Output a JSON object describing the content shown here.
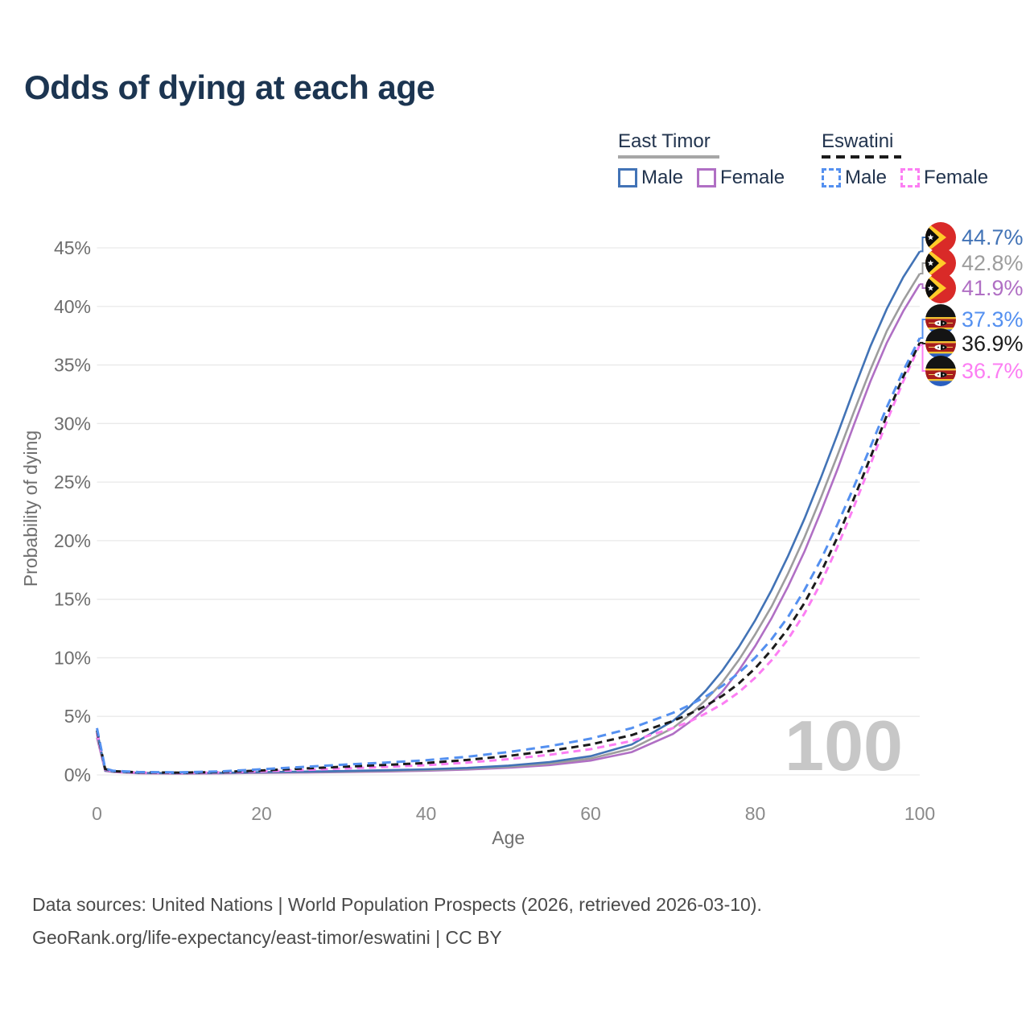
{
  "title": "Odds of dying at each age",
  "legend": {
    "groups": [
      {
        "country": "East Timor",
        "line_color": "#a6a6a6",
        "line_dashed": false,
        "underline_width": 126,
        "items": [
          {
            "label": "Male",
            "color": "#4273b6",
            "dashed": false
          },
          {
            "label": "Female",
            "color": "#b06fc4",
            "dashed": false
          }
        ]
      },
      {
        "country": "Eswatini",
        "line_color": "#1b1b1b",
        "line_dashed": true,
        "underline_width": 99,
        "items": [
          {
            "label": "Male",
            "color": "#5490f0",
            "dashed": true
          },
          {
            "label": "Female",
            "color": "#fc7ef3",
            "dashed": true
          }
        ]
      }
    ]
  },
  "chart_data": {
    "type": "line",
    "title": "Odds of dying at each age",
    "xlabel": "Age",
    "ylabel": "Probability of dying",
    "xlim": [
      0,
      100
    ],
    "ylim_pct": [
      0,
      45
    ],
    "x_ticks": [
      0,
      20,
      40,
      60,
      80,
      100
    ],
    "y_ticks_pct": [
      0,
      5,
      10,
      15,
      20,
      25,
      30,
      35,
      40,
      45
    ],
    "y_tick_suffix": "%",
    "grid": "horizontal-only",
    "watermark": "100",
    "grid_color": "#e9e9e9",
    "ages": [
      0,
      1,
      2,
      5,
      10,
      15,
      20,
      25,
      30,
      35,
      40,
      45,
      50,
      55,
      60,
      65,
      70,
      72,
      74,
      76,
      78,
      80,
      82,
      84,
      86,
      88,
      90,
      92,
      94,
      96,
      98,
      100
    ],
    "series": [
      {
        "name": "East Timor Male",
        "country": "East Timor",
        "sex": "Male",
        "color": "#4273b6",
        "dashed": false,
        "end_label": "44.7%",
        "flag": "east-timor",
        "values": [
          3.8,
          0.4,
          0.3,
          0.18,
          0.15,
          0.18,
          0.24,
          0.28,
          0.33,
          0.4,
          0.48,
          0.6,
          0.8,
          1.1,
          1.6,
          2.6,
          4.6,
          5.8,
          7.2,
          8.9,
          10.9,
          13.2,
          15.8,
          18.7,
          21.9,
          25.4,
          29.1,
          32.9,
          36.6,
          39.8,
          42.5,
          44.7
        ]
      },
      {
        "name": "East Timor Both sexes",
        "country": "East Timor",
        "sex": "Both sexes",
        "color": "#9d9d9d",
        "dashed": false,
        "end_label": "42.8%",
        "flag": "east-timor",
        "values": [
          3.5,
          0.37,
          0.27,
          0.16,
          0.13,
          0.16,
          0.21,
          0.25,
          0.29,
          0.35,
          0.42,
          0.53,
          0.7,
          0.96,
          1.4,
          2.25,
          4.0,
          5.1,
          6.4,
          7.9,
          9.8,
          12.0,
          14.4,
          17.2,
          20.3,
          23.7,
          27.3,
          31.0,
          34.6,
          37.9,
          40.5,
          42.8
        ]
      },
      {
        "name": "East Timor Female",
        "country": "East Timor",
        "sex": "Female",
        "color": "#b06fc4",
        "dashed": false,
        "end_label": "41.9%",
        "flag": "east-timor",
        "values": [
          3.2,
          0.34,
          0.24,
          0.14,
          0.11,
          0.13,
          0.17,
          0.2,
          0.24,
          0.29,
          0.36,
          0.46,
          0.61,
          0.84,
          1.22,
          1.95,
          3.5,
          4.5,
          5.7,
          7.1,
          8.9,
          11.0,
          13.4,
          16.1,
          19.1,
          22.5,
          26.1,
          29.9,
          33.6,
          36.9,
          39.6,
          41.9
        ]
      },
      {
        "name": "Eswatini Male",
        "country": "Eswatini",
        "sex": "Male",
        "color": "#5490f0",
        "dashed": true,
        "end_label": "37.3%",
        "flag": "eswatini",
        "values": [
          4.0,
          0.55,
          0.35,
          0.25,
          0.22,
          0.3,
          0.48,
          0.68,
          0.88,
          1.05,
          1.25,
          1.55,
          1.95,
          2.45,
          3.1,
          4.0,
          5.3,
          5.95,
          6.7,
          7.6,
          8.7,
          10.0,
          11.6,
          13.5,
          15.8,
          18.4,
          21.4,
          24.6,
          28.0,
          31.4,
          34.5,
          37.3
        ]
      },
      {
        "name": "Eswatini Both sexes",
        "country": "Eswatini",
        "sex": "Both sexes",
        "color": "#1b1b1b",
        "dashed": true,
        "end_label": "36.9%",
        "flag": "eswatini",
        "values": [
          3.8,
          0.5,
          0.32,
          0.22,
          0.19,
          0.25,
          0.38,
          0.54,
          0.7,
          0.85,
          1.02,
          1.28,
          1.62,
          2.05,
          2.6,
          3.4,
          4.6,
          5.2,
          5.9,
          6.75,
          7.8,
          9.1,
          10.7,
          12.5,
          14.7,
          17.3,
          20.3,
          23.6,
          27.1,
          30.7,
          34.0,
          36.9
        ]
      },
      {
        "name": "Eswatini Female",
        "country": "Eswatini",
        "sex": "Female",
        "color": "#fc7ef3",
        "dashed": true,
        "end_label": "36.7%",
        "flag": "eswatini",
        "values": [
          3.6,
          0.46,
          0.29,
          0.19,
          0.16,
          0.21,
          0.3,
          0.42,
          0.55,
          0.68,
          0.83,
          1.05,
          1.35,
          1.72,
          2.2,
          2.9,
          4.0,
          4.55,
          5.25,
          6.05,
          7.05,
          8.3,
          9.8,
          11.6,
          13.8,
          16.4,
          19.5,
          22.9,
          26.5,
          30.2,
          33.6,
          36.7
        ]
      }
    ]
  },
  "footer": {
    "line1": "Data sources: United Nations | World Population Prospects (2026, retrieved 2026-03-10).",
    "line2": "GeoRank.org/life-expectancy/east-timor/eswatini | CC BY"
  }
}
